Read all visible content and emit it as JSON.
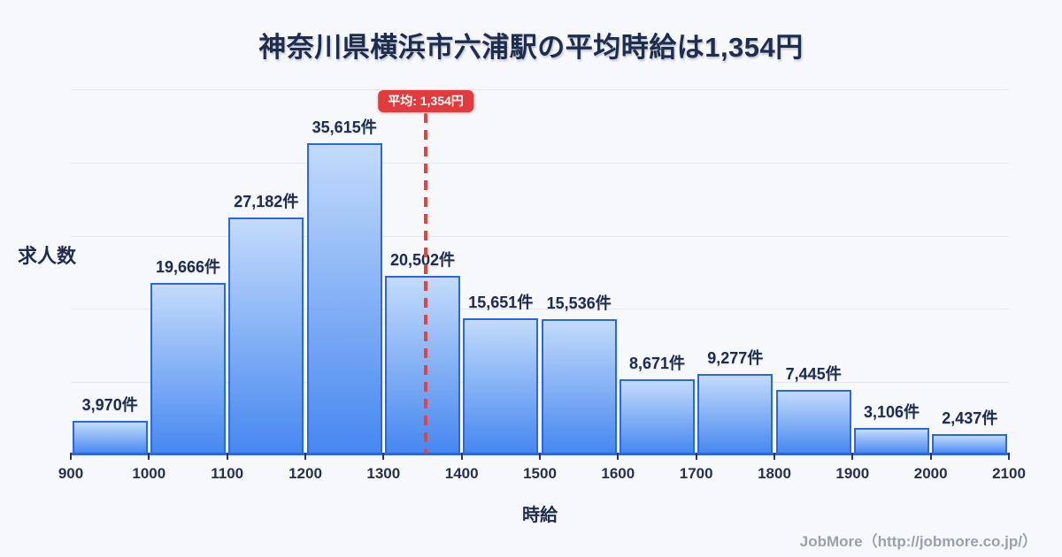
{
  "title": "神奈川県横浜市六浦駅の平均時給は1,354円",
  "footer": {
    "credit": "JobMore（http://jobmore.co.jp/）"
  },
  "chart_data": {
    "type": "bar",
    "title": "神奈川県横浜市六浦駅の平均時給は1,354円",
    "xlabel": "時給",
    "ylabel": "求人数",
    "bin_edges": [
      900,
      1000,
      1100,
      1200,
      1300,
      1400,
      1500,
      1600,
      1700,
      1800,
      1900,
      2000,
      2100
    ],
    "x_tick_labels": [
      "900",
      "1000",
      "1100",
      "1200",
      "1300",
      "1400",
      "1500",
      "1600",
      "1700",
      "1800",
      "1900",
      "2000",
      "2100"
    ],
    "values": [
      3970,
      19666,
      27182,
      35615,
      20502,
      15651,
      15536,
      8671,
      9277,
      7445,
      3106,
      2437
    ],
    "value_labels": [
      "3,970件",
      "19,666件",
      "27,182件",
      "35,615件",
      "20,502件",
      "15,651件",
      "15,536件",
      "8,671件",
      "9,277件",
      "7,445件",
      "3,106件",
      "2,437件"
    ],
    "average": 1354,
    "average_label": "平均: 1,354円",
    "x_range": [
      900,
      2100
    ],
    "grid": true,
    "gridline_count": 5,
    "legend": false,
    "colors": {
      "background": "#f7f8fb",
      "bar_fill_top": "#c3dbfb",
      "bar_fill_bottom": "#4687f0",
      "bar_border": "#2b67e0",
      "grid": "#e3e7ef",
      "average_line": "#e8423f",
      "badge_bg": "#e13b3d",
      "badge_text": "#ffffff",
      "title_text": "#1f2d4d",
      "tick_text": "#25314f",
      "footer_text": "#99a1ac"
    }
  }
}
